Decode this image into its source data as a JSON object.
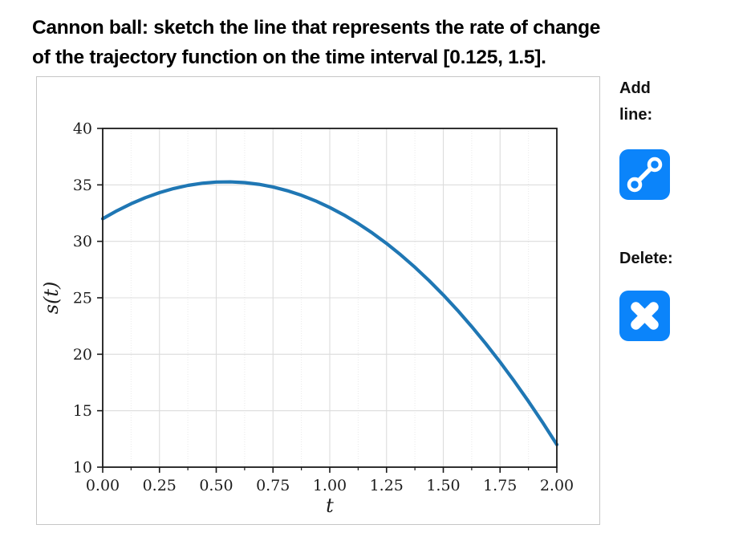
{
  "title": {
    "line1": "Cannon ball: sketch the line that represents the rate of change",
    "line2": "of the trajectory function on the time interval [0.125, 1.5]."
  },
  "controls": {
    "add_label": "Add line:",
    "delete_label": "Delete:",
    "button_color": "#0b84fa",
    "icon_color": "#ffffff"
  },
  "chart_data": {
    "type": "line",
    "title": "",
    "xlabel": "t",
    "ylabel": "s(t)",
    "xlim": [
      0,
      2
    ],
    "ylim": [
      10,
      40
    ],
    "x_ticks": [
      0,
      0.25,
      0.5,
      0.75,
      1,
      1.25,
      1.5,
      1.75,
      2
    ],
    "x_tick_labels": [
      "0.00",
      "0.25",
      "0.50",
      "0.75",
      "1.00",
      "1.25",
      "1.50",
      "1.75",
      "2.00"
    ],
    "y_ticks": [
      10,
      15,
      20,
      25,
      30,
      35,
      40
    ],
    "y_tick_labels": [
      "10",
      "15",
      "20",
      "25",
      "30",
      "35",
      "40"
    ],
    "x_minor_step": 0.125,
    "grid": true,
    "legend": false,
    "line_color": "#1f77b4",
    "grid_major_color": "#dcdcdc",
    "grid_minor_color": "#e9e9e9",
    "spine_color": "#1a1a1a",
    "series": [
      {
        "x": [
          0,
          0.0625,
          0.125,
          0.1875,
          0.25,
          0.3125,
          0.375,
          0.4375,
          0.5,
          0.5625,
          0.625,
          0.6875,
          0.75,
          0.8125,
          0.875,
          0.9375,
          1,
          1.0625,
          1.125,
          1.1875,
          1.25,
          1.3125,
          1.375,
          1.4375,
          1.5,
          1.5625,
          1.625,
          1.6875,
          1.75,
          1.8125,
          1.875,
          1.9375,
          2
        ],
        "y": [
          32,
          32.707,
          33.328,
          33.863,
          34.313,
          34.676,
          34.953,
          35.145,
          35.25,
          35.27,
          35.203,
          35.051,
          34.813,
          34.488,
          34.078,
          33.582,
          33,
          32.332,
          31.578,
          30.738,
          29.813,
          28.801,
          27.703,
          26.52,
          25.25,
          23.895,
          22.453,
          20.926,
          19.313,
          17.613,
          15.828,
          13.957,
          12
        ]
      }
    ]
  }
}
